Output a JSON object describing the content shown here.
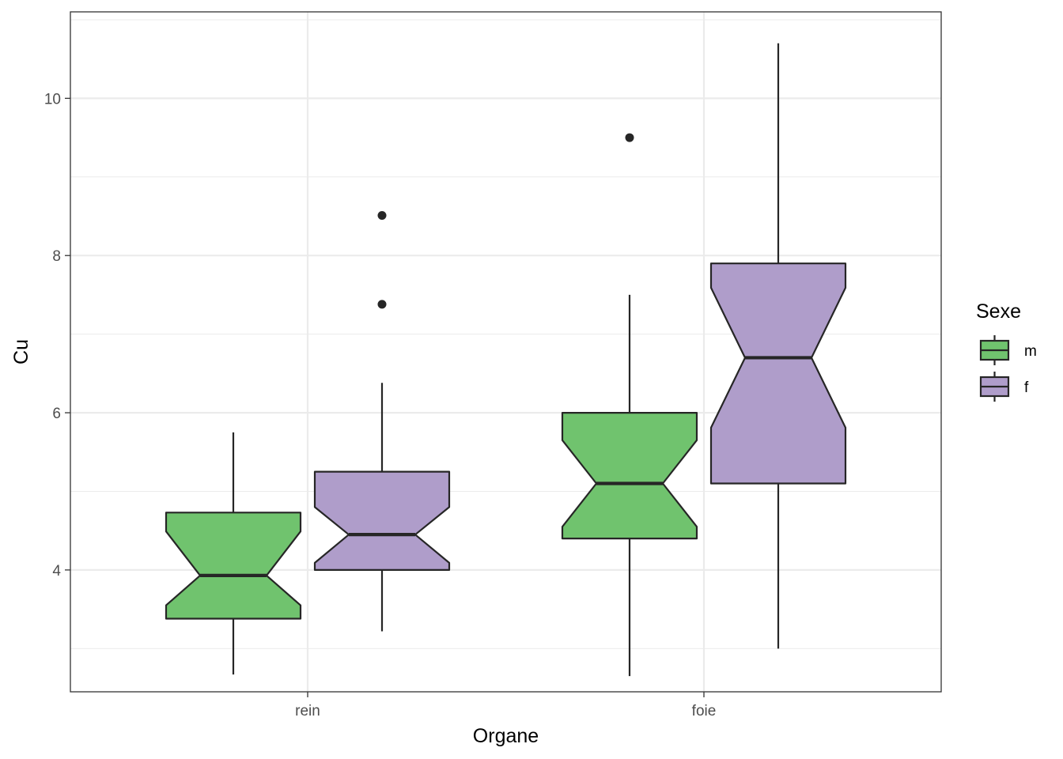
{
  "chart_data": {
    "type": "boxplot",
    "notched": true,
    "xlabel": "Organe",
    "ylabel": "Cu",
    "categories": [
      "rein",
      "foie"
    ],
    "ylim": [
      2.45,
      11.1
    ],
    "y_ticks": [
      4,
      6,
      8,
      10
    ],
    "y_tick_labels": [
      "4",
      "6",
      "8",
      "10"
    ],
    "grid": true,
    "legend": {
      "title": "Sexe",
      "position": "right"
    },
    "series": [
      {
        "name": "m",
        "color": "#70C36E",
        "boxes": [
          {
            "category": "rein",
            "whisker_low": 2.67,
            "q1": 3.38,
            "median": 3.93,
            "q3": 4.73,
            "whisker_high": 5.75,
            "notch_low": 3.55,
            "notch_high": 4.49,
            "outliers": []
          },
          {
            "category": "foie",
            "whisker_low": 2.65,
            "q1": 4.4,
            "median": 5.1,
            "q3": 6.0,
            "whisker_high": 7.5,
            "notch_low": 4.55,
            "notch_high": 5.65,
            "outliers": [
              9.5
            ]
          }
        ]
      },
      {
        "name": "f",
        "color": "#AF9DCA",
        "boxes": [
          {
            "category": "rein",
            "whisker_low": 3.22,
            "q1": 4.0,
            "median": 4.45,
            "q3": 5.25,
            "whisker_high": 6.38,
            "notch_low": 4.09,
            "notch_high": 4.8,
            "outliers": [
              7.38,
              8.51
            ]
          },
          {
            "category": "foie",
            "whisker_low": 3.0,
            "q1": 5.1,
            "median": 6.7,
            "q3": 7.9,
            "whisker_high": 10.7,
            "notch_low": 5.81,
            "notch_high": 7.59,
            "outliers": []
          }
        ]
      }
    ]
  },
  "colors": {
    "grid": "#EBEBEB",
    "border": "#333333",
    "box_stroke": "#262626",
    "tick": "#333333"
  }
}
